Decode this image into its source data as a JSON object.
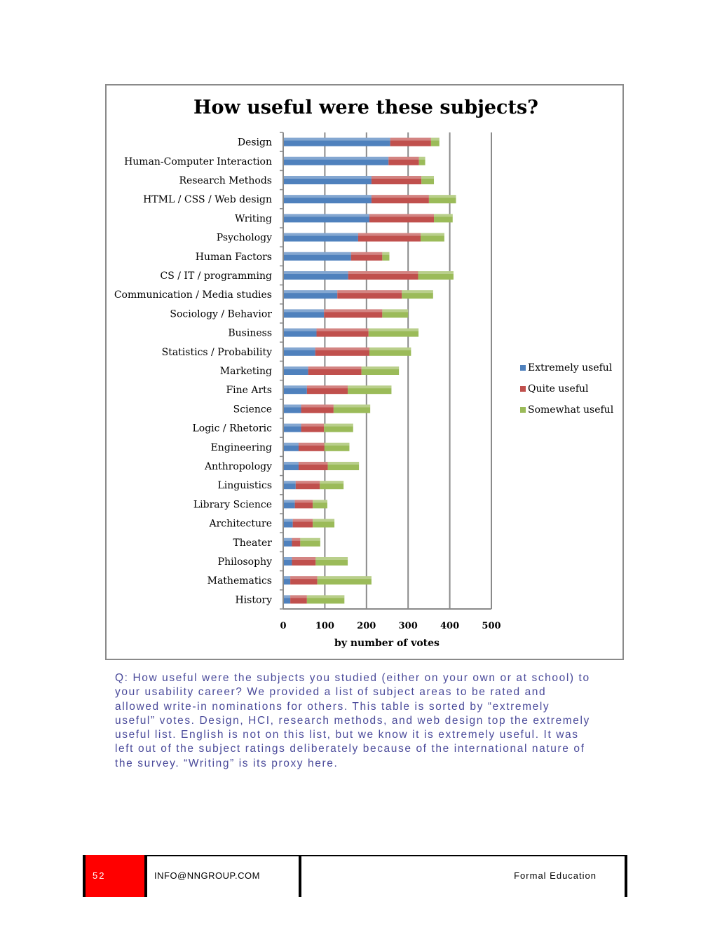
{
  "chart_data": {
    "type": "bar",
    "orientation": "horizontal",
    "stacked": true,
    "title": "How useful were these subjects?",
    "xlabel": "by number of votes",
    "ylabel": "",
    "xlim": [
      0,
      500
    ],
    "xticks": [
      0,
      100,
      200,
      300,
      400,
      500
    ],
    "grid": true,
    "legend_position": "right",
    "categories": [
      "Design",
      "Human-Computer Interaction",
      "Research Methods",
      "HTML / CSS / Web design",
      "Writing",
      "Psychology",
      "Human Factors",
      "CS / IT / programming",
      "Communication / Media studies",
      "Sociology / Behavior",
      "Business",
      "Statistics / Probability",
      "Marketing",
      "Fine Arts",
      "Science",
      "Logic / Rhetoric",
      "Engineering",
      "Anthropology",
      "Linguistics",
      "Library Science",
      "Architecture",
      "Theater",
      "Philosophy",
      "Mathematics",
      "History"
    ],
    "series": [
      {
        "name": "Extremely useful",
        "color": "#4f81bd",
        "values": [
          257,
          253,
          212,
          212,
          207,
          180,
          163,
          156,
          130,
          98,
          80,
          77,
          60,
          57,
          43,
          43,
          37,
          37,
          30,
          28,
          23,
          21,
          21,
          17,
          17
        ]
      },
      {
        "name": "Quite useful",
        "color": "#c0504d",
        "values": [
          98,
          73,
          120,
          138,
          155,
          150,
          75,
          168,
          155,
          140,
          125,
          130,
          128,
          98,
          78,
          55,
          62,
          70,
          58,
          43,
          48,
          20,
          57,
          65,
          40
        ]
      },
      {
        "name": "Somewhat useful",
        "color": "#9bbb59",
        "values": [
          20,
          15,
          30,
          65,
          45,
          57,
          17,
          85,
          75,
          62,
          120,
          100,
          90,
          105,
          88,
          70,
          60,
          75,
          57,
          35,
          52,
          48,
          77,
          130,
          90
        ]
      }
    ]
  },
  "caption": {
    "text": "Q: How useful were the subjects you studied (either on your own or at school) to your usability career? We provided a list of subject areas to be rated and allowed write-in nominations for others. This table is sorted by “extremely useful” votes. Design, HCI, research methods, and web design top the extremely useful list. English is not on this list, but we know it is extremely useful. It was left out of the subject ratings deliberately because of the international nature of the survey. “Writing” is its proxy here."
  },
  "footer": {
    "page_number": "52",
    "email": "INFO@NNGROUP.COM",
    "section": "Formal Education"
  }
}
